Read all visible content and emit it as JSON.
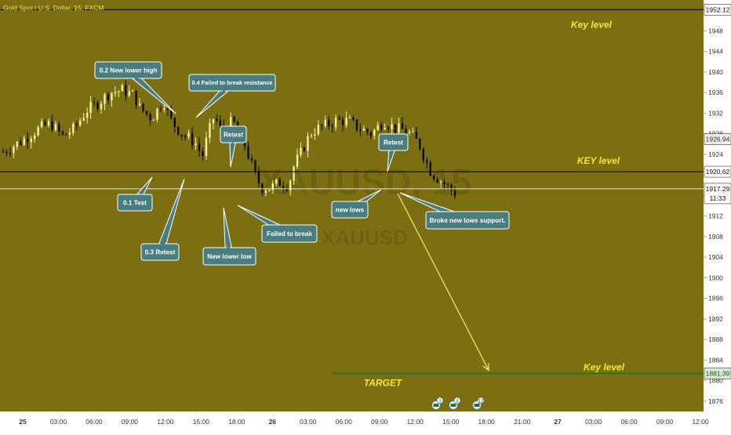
{
  "header": {
    "symbol_title": "Gold Spot / U.S. Dollar, 15, FXCM"
  },
  "colors": {
    "background": "#7b6f12",
    "candle_up": "#f4f29a",
    "candle_down": "#0b0b0b",
    "callout_fill": "#4a7d80",
    "callout_border": "#ffffff",
    "level_label": "#f5e634",
    "projection": "#f2ec6a",
    "target_line": "#1f6b1f",
    "axis_bg": "#ffffff",
    "axis_text": "#333333"
  },
  "chart_data": {
    "type": "candlestick",
    "instrument": "Gold Spot / U.S. Dollar",
    "timeframe": "15",
    "ylim": [
      1874,
      1954
    ],
    "y_ticks": [
      1876,
      1880,
      1884,
      1888,
      1892,
      1896,
      1900,
      1904,
      1908,
      1912,
      1916,
      1920,
      1924,
      1928,
      1932,
      1936,
      1940,
      1944,
      1948
    ],
    "x_ticks": [
      "25",
      "03:00",
      "06:00",
      "09:00",
      "12:00",
      "15:00",
      "18:00",
      "26",
      "03:00",
      "06:00",
      "09:00",
      "12:00",
      "15:00",
      "18:00",
      "21:00",
      "27",
      "03:00",
      "06:00",
      "09:00",
      "12:00"
    ],
    "price_path": [
      [
        0,
        1924.5
      ],
      [
        3,
        1926.5
      ],
      [
        6,
        1929
      ],
      [
        8,
        1930
      ],
      [
        10,
        1927.5
      ],
      [
        12,
        1929
      ],
      [
        14,
        1932.5
      ],
      [
        16,
        1934
      ],
      [
        18,
        1936
      ],
      [
        20,
        1936.5
      ],
      [
        22,
        1935.5
      ],
      [
        23,
        1933
      ],
      [
        25,
        1931
      ],
      [
        27,
        1934.5
      ],
      [
        28,
        1931
      ],
      [
        30,
        1928
      ],
      [
        31.5,
        1927
      ],
      [
        32.5,
        1926
      ],
      [
        33.5,
        1923.5
      ],
      [
        34.5,
        1928
      ],
      [
        35.5,
        1931.5
      ],
      [
        36.5,
        1929
      ],
      [
        37.5,
        1928.5
      ],
      [
        38.5,
        1930.5
      ],
      [
        40,
        1928
      ],
      [
        41.5,
        1923
      ],
      [
        42.5,
        1919.5
      ],
      [
        43.5,
        1917.5
      ],
      [
        45,
        1917.5
      ],
      [
        46.5,
        1918.5
      ],
      [
        48,
        1918
      ],
      [
        49,
        1922
      ],
      [
        50,
        1924
      ],
      [
        51,
        1926.5
      ],
      [
        52,
        1928.5
      ],
      [
        54,
        1929.5
      ],
      [
        56,
        1930.5
      ],
      [
        58,
        1930.5
      ],
      [
        60,
        1929
      ],
      [
        62,
        1928
      ],
      [
        64,
        1930.5
      ],
      [
        66,
        1929
      ],
      [
        68,
        1928.5
      ],
      [
        70,
        1926
      ],
      [
        71,
        1923
      ],
      [
        72,
        1920.5
      ],
      [
        73,
        1919.5
      ],
      [
        74,
        1918.5
      ],
      [
        75,
        1917.5
      ],
      [
        76,
        1916.5
      ]
    ],
    "horizontal_levels": [
      {
        "price": 1952.12,
        "label": "1952.12"
      },
      {
        "price": 1920.62,
        "label": "1920.62"
      },
      {
        "price": 1881.39,
        "label": "1881.39"
      }
    ],
    "current_price": {
      "price": 1917.29,
      "label": "1917.29",
      "countdown": "11:33"
    },
    "other_price_label": {
      "price": 1926.94,
      "label": "1926.94"
    },
    "level_texts": [
      {
        "text": "Key level",
        "price": 1949.2
      },
      {
        "text": "KEY level",
        "price": 1922.8
      },
      {
        "text": "Key level",
        "price": 1882.6
      },
      {
        "text": "TARGET",
        "price": 1879.6
      }
    ],
    "annotations": [
      {
        "text": "0.2 New lower high"
      },
      {
        "text": "0.4 Failed to break resistance"
      },
      {
        "text": "Retest"
      },
      {
        "text": "0.1 Test"
      },
      {
        "text": "0.3 Retest"
      },
      {
        "text": "New lower low"
      },
      {
        "text": "Failed to break"
      },
      {
        "text": "Retest"
      },
      {
        "text": "new lows"
      },
      {
        "text": "Broke new lows support."
      }
    ],
    "projection": {
      "from_price": 1917.0,
      "to_price": 1881.4
    },
    "watermark": [
      "XAUUSD, 15",
      "XAUUSD"
    ],
    "event_badges": [
      "3",
      "4",
      "12"
    ]
  }
}
